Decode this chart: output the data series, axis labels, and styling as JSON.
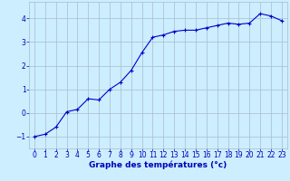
{
  "x": [
    0,
    1,
    2,
    3,
    4,
    5,
    6,
    7,
    8,
    9,
    10,
    11,
    12,
    13,
    14,
    15,
    16,
    17,
    18,
    19,
    20,
    21,
    22,
    23
  ],
  "y": [
    -1.0,
    -0.9,
    -0.6,
    0.05,
    0.15,
    0.6,
    0.55,
    1.0,
    1.3,
    1.8,
    2.55,
    3.2,
    3.3,
    3.45,
    3.5,
    3.5,
    3.6,
    3.7,
    3.8,
    3.75,
    3.8,
    4.2,
    4.1,
    3.9
  ],
  "line_color": "#0000cc",
  "marker": "+",
  "marker_size": 3,
  "linewidth": 0.8,
  "xlabel": "Graphe des températures (°c)",
  "xlabel_fontsize": 6.5,
  "xlabel_color": "#0000bb",
  "xlabel_fontweight": "bold",
  "background_color": "#cceeff",
  "grid_color": "#aabbcc",
  "tick_label_color": "#0000bb",
  "tick_label_fontsize": 5.5,
  "xlim": [
    -0.5,
    23.5
  ],
  "ylim": [
    -1.5,
    4.7
  ],
  "yticks": [
    -1,
    0,
    1,
    2,
    3,
    4
  ],
  "xticks": [
    0,
    1,
    2,
    3,
    4,
    5,
    6,
    7,
    8,
    9,
    10,
    11,
    12,
    13,
    14,
    15,
    16,
    17,
    18,
    19,
    20,
    21,
    22,
    23
  ]
}
